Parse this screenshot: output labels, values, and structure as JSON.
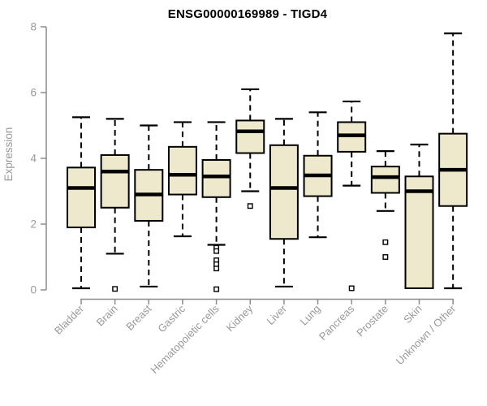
{
  "chart_data": {
    "type": "boxplot",
    "title": "ENSG00000169989 - TIGD4",
    "xlabel": "",
    "ylabel": "Expression",
    "ylim": [
      0,
      8
    ],
    "yticks": [
      0,
      2,
      4,
      6,
      8
    ],
    "grid": false,
    "legend": false,
    "x_label_rotation_deg": 45,
    "categories": [
      "Bladder",
      "Brain",
      "Breast",
      "Gastric",
      "Hematopoietic cells",
      "Kidney",
      "Liver",
      "Lung",
      "Pancreas",
      "Prostate",
      "Skin",
      "Unknown / Other"
    ],
    "boxes": [
      {
        "category": "Bladder",
        "whisker_low": 0.05,
        "q1": 1.9,
        "median": 3.1,
        "q3": 3.72,
        "whisker_high": 5.25,
        "outliers": []
      },
      {
        "category": "Brain",
        "whisker_low": 1.1,
        "q1": 2.5,
        "median": 3.6,
        "q3": 4.1,
        "whisker_high": 5.2,
        "outliers": [
          0.03
        ]
      },
      {
        "category": "Breast",
        "whisker_low": 0.1,
        "q1": 2.1,
        "median": 2.9,
        "q3": 3.65,
        "whisker_high": 5.0,
        "outliers": []
      },
      {
        "category": "Gastric",
        "whisker_low": 1.63,
        "q1": 2.9,
        "median": 3.5,
        "q3": 4.35,
        "whisker_high": 5.1,
        "outliers": []
      },
      {
        "category": "Hematopoietic cells",
        "whisker_low": 1.37,
        "q1": 2.82,
        "median": 3.45,
        "q3": 3.95,
        "whisker_high": 5.1,
        "outliers": [
          1.28,
          1.18,
          0.9,
          0.78,
          0.65,
          0.02
        ]
      },
      {
        "category": "Kidney",
        "whisker_low": 3.0,
        "q1": 4.16,
        "median": 4.82,
        "q3": 5.15,
        "whisker_high": 6.1,
        "outliers": [
          2.55
        ]
      },
      {
        "category": "Liver",
        "whisker_low": 0.1,
        "q1": 1.55,
        "median": 3.1,
        "q3": 4.4,
        "whisker_high": 5.2,
        "outliers": []
      },
      {
        "category": "Lung",
        "whisker_low": 1.6,
        "q1": 2.85,
        "median": 3.48,
        "q3": 4.08,
        "whisker_high": 5.4,
        "outliers": []
      },
      {
        "category": "Pancreas",
        "whisker_low": 3.17,
        "q1": 4.2,
        "median": 4.7,
        "q3": 5.1,
        "whisker_high": 5.73,
        "outliers": [
          0.05
        ]
      },
      {
        "category": "Prostate",
        "whisker_low": 2.4,
        "q1": 2.95,
        "median": 3.43,
        "q3": 3.75,
        "whisker_high": 4.22,
        "outliers": [
          1.45,
          1.0
        ]
      },
      {
        "category": "Skin",
        "whisker_low": 0.05,
        "q1": 0.05,
        "median": 3.0,
        "q3": 3.45,
        "whisker_high": 4.42,
        "outliers": []
      },
      {
        "category": "Unknown / Other",
        "whisker_low": 0.05,
        "q1": 2.55,
        "median": 3.65,
        "q3": 4.75,
        "whisker_high": 7.8,
        "outliers": []
      }
    ],
    "colors": {
      "box_fill": "#EEE8CD",
      "box_stroke": "#000000",
      "median": "#000000",
      "whisker": "#000000",
      "outlier": "#000000",
      "axis": "#8C8C8C",
      "tick_label": "#999999",
      "title": "#000000",
      "background": "#FFFFFF"
    }
  }
}
